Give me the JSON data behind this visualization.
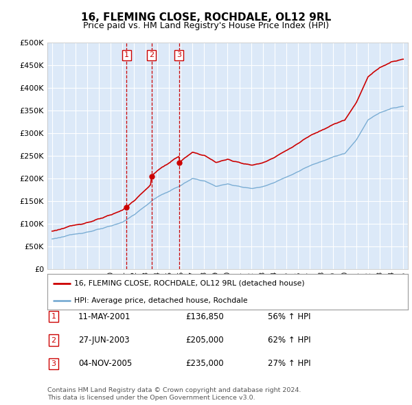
{
  "title": "16, FLEMING CLOSE, ROCHDALE, OL12 9RL",
  "subtitle": "Price paid vs. HM Land Registry's House Price Index (HPI)",
  "legend_line1": "16, FLEMING CLOSE, ROCHDALE, OL12 9RL (detached house)",
  "legend_line2": "HPI: Average price, detached house, Rochdale",
  "footer1": "Contains HM Land Registry data © Crown copyright and database right 2024.",
  "footer2": "This data is licensed under the Open Government Licence v3.0.",
  "sales": [
    {
      "num": 1,
      "date": "11-MAY-2001",
      "price": 136850,
      "pct": "56%",
      "dir": "↑"
    },
    {
      "num": 2,
      "date": "27-JUN-2003",
      "price": 205000,
      "pct": "62%",
      "dir": "↑"
    },
    {
      "num": 3,
      "date": "04-NOV-2005",
      "price": 235000,
      "pct": "27%",
      "dir": "↑"
    }
  ],
  "sale_years": [
    2001.36,
    2003.49,
    2005.84
  ],
  "sale_prices": [
    136850,
    205000,
    235000
  ],
  "ylim": [
    0,
    500000
  ],
  "yticks": [
    0,
    50000,
    100000,
    150000,
    200000,
    250000,
    300000,
    350000,
    400000,
    450000,
    500000
  ],
  "background_color": "#dce9f8",
  "line_color_red": "#cc0000",
  "line_color_blue": "#7aadd4",
  "grid_color": "#ffffff",
  "box_color": "#cc0000",
  "title_fontsize": 11,
  "subtitle_fontsize": 9
}
